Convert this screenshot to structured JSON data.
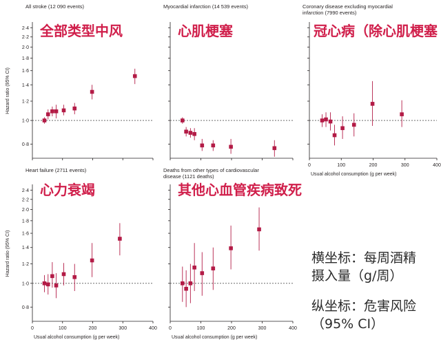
{
  "colors": {
    "marker": "#b31b46",
    "overlay_text": "#d01f4b",
    "axis": "#231f20",
    "reference_line": "#555555"
  },
  "y_axis_title": "Hazard ratio (95% CI)",
  "x_axis_title": "Usual alcohol consumption (g per week)",
  "notes": [
    "横坐标：每周酒精",
    "摄入量（g/周）",
    "纵坐标：危害风险",
    "（95% CI）"
  ],
  "chart_data": [
    {
      "type": "scatter",
      "title": "All stroke (12 090 events)",
      "overlay_title": "全部类型中风",
      "ylabel": "Hazard ratio (95% CI)",
      "xlabel": "",
      "xlim": [
        0,
        400
      ],
      "ylim": [
        0.7,
        2.5
      ],
      "log_y": true,
      "reference_line": 1.0,
      "y_ticks": [
        "0.8",
        "1.0",
        "1.2",
        "1.4",
        "1.6",
        "1.8",
        "2.0",
        "2.2",
        "2.4"
      ],
      "x_ticks": [],
      "points": [
        {
          "x": 40,
          "y": 1.0,
          "lo": 0.97,
          "hi": 1.03
        },
        {
          "x": 52,
          "y": 1.06,
          "lo": 1.01,
          "hi": 1.11
        },
        {
          "x": 66,
          "y": 1.09,
          "lo": 1.04,
          "hi": 1.14
        },
        {
          "x": 79,
          "y": 1.09,
          "lo": 1.02,
          "hi": 1.16
        },
        {
          "x": 104,
          "y": 1.1,
          "lo": 1.05,
          "hi": 1.16
        },
        {
          "x": 140,
          "y": 1.12,
          "lo": 1.06,
          "hi": 1.18
        },
        {
          "x": 198,
          "y": 1.31,
          "lo": 1.22,
          "hi": 1.4
        },
        {
          "x": 340,
          "y": 1.52,
          "lo": 1.41,
          "hi": 1.63
        }
      ]
    },
    {
      "type": "scatter",
      "title": "Myocardial infarction (14 539 events)",
      "overlay_title": "心肌梗塞",
      "ylabel": "",
      "xlabel": "",
      "xlim": [
        0,
        400
      ],
      "ylim": [
        0.7,
        2.5
      ],
      "log_y": true,
      "reference_line": 1.0,
      "y_ticks": [],
      "x_ticks": [],
      "points": [
        {
          "x": 40,
          "y": 1.0,
          "lo": 0.97,
          "hi": 1.03
        },
        {
          "x": 52,
          "y": 0.9,
          "lo": 0.86,
          "hi": 0.94
        },
        {
          "x": 66,
          "y": 0.89,
          "lo": 0.85,
          "hi": 0.93
        },
        {
          "x": 79,
          "y": 0.88,
          "lo": 0.83,
          "hi": 0.93
        },
        {
          "x": 104,
          "y": 0.79,
          "lo": 0.75,
          "hi": 0.84
        },
        {
          "x": 140,
          "y": 0.79,
          "lo": 0.75,
          "hi": 0.83
        },
        {
          "x": 198,
          "y": 0.78,
          "lo": 0.73,
          "hi": 0.84
        },
        {
          "x": 340,
          "y": 0.77,
          "lo": 0.71,
          "hi": 0.83
        }
      ]
    },
    {
      "type": "scatter",
      "title": "Coronary disease excluding myocardial infarction (7990 events)",
      "overlay_title": "冠心病（除心肌梗塞",
      "ylabel": "",
      "xlabel": "Usual alcohol consumption (g per week)",
      "xlim": [
        0,
        400
      ],
      "ylim": [
        0.7,
        2.5
      ],
      "log_y": true,
      "reference_line": 1.0,
      "y_ticks": [],
      "x_ticks": [
        "0",
        "100",
        "200",
        "300",
        "400"
      ],
      "points": [
        {
          "x": 40,
          "y": 1.0,
          "lo": 0.94,
          "hi": 1.06
        },
        {
          "x": 52,
          "y": 1.01,
          "lo": 0.94,
          "hi": 1.08
        },
        {
          "x": 66,
          "y": 0.99,
          "lo": 0.91,
          "hi": 1.08
        },
        {
          "x": 79,
          "y": 0.87,
          "lo": 0.79,
          "hi": 0.96
        },
        {
          "x": 104,
          "y": 0.93,
          "lo": 0.84,
          "hi": 1.04
        },
        {
          "x": 140,
          "y": 0.96,
          "lo": 0.86,
          "hi": 1.07
        },
        {
          "x": 198,
          "y": 1.17,
          "lo": 0.95,
          "hi": 1.45
        },
        {
          "x": 290,
          "y": 1.06,
          "lo": 0.94,
          "hi": 1.21
        }
      ]
    },
    {
      "type": "scatter",
      "title": "Heart failure (2711 events)",
      "overlay_title": "心力衰竭",
      "ylabel": "Hazard ratio (95% CI)",
      "xlabel": "Usual alcohol consumption (g per week)",
      "xlim": [
        0,
        400
      ],
      "ylim": [
        0.7,
        2.5
      ],
      "log_y": true,
      "reference_line": 1.0,
      "y_ticks": [
        "0.8",
        "1.0",
        "1.2",
        "1.4",
        "1.6",
        "1.8",
        "2.0",
        "2.2",
        "2.4"
      ],
      "x_ticks": [
        "0",
        "100",
        "200",
        "300",
        "400"
      ],
      "points": [
        {
          "x": 40,
          "y": 1.0,
          "lo": 0.92,
          "hi": 1.08
        },
        {
          "x": 52,
          "y": 0.99,
          "lo": 0.9,
          "hi": 1.09
        },
        {
          "x": 66,
          "y": 1.07,
          "lo": 0.96,
          "hi": 1.22
        },
        {
          "x": 79,
          "y": 0.98,
          "lo": 0.87,
          "hi": 1.1
        },
        {
          "x": 104,
          "y": 1.09,
          "lo": 0.98,
          "hi": 1.21
        },
        {
          "x": 140,
          "y": 1.06,
          "lo": 0.93,
          "hi": 1.2
        },
        {
          "x": 198,
          "y": 1.24,
          "lo": 1.06,
          "hi": 1.46
        },
        {
          "x": 290,
          "y": 1.52,
          "lo": 1.3,
          "hi": 1.76
        }
      ]
    },
    {
      "type": "scatter",
      "title": "Deaths from other types of cardiovascular disease (1121 deaths)",
      "overlay_title": "其他心血管疾病致死",
      "ylabel": "",
      "xlabel": "Usual alcohol consumption (g per week)",
      "xlim": [
        0,
        400
      ],
      "ylim": [
        0.7,
        2.5
      ],
      "log_y": true,
      "reference_line": 1.0,
      "y_ticks": [],
      "x_ticks": [
        "0",
        "100",
        "200",
        "300",
        "400"
      ],
      "points": [
        {
          "x": 40,
          "y": 1.0,
          "lo": 0.84,
          "hi": 1.17
        },
        {
          "x": 52,
          "y": 0.95,
          "lo": 0.8,
          "hi": 1.13
        },
        {
          "x": 66,
          "y": 1.0,
          "lo": 0.83,
          "hi": 1.2
        },
        {
          "x": 79,
          "y": 1.16,
          "lo": 0.93,
          "hi": 1.46
        },
        {
          "x": 104,
          "y": 1.1,
          "lo": 0.89,
          "hi": 1.34
        },
        {
          "x": 140,
          "y": 1.15,
          "lo": 0.94,
          "hi": 1.4
        },
        {
          "x": 198,
          "y": 1.39,
          "lo": 1.14,
          "hi": 1.72
        },
        {
          "x": 290,
          "y": 1.66,
          "lo": 1.36,
          "hi": 2.04
        }
      ]
    }
  ]
}
